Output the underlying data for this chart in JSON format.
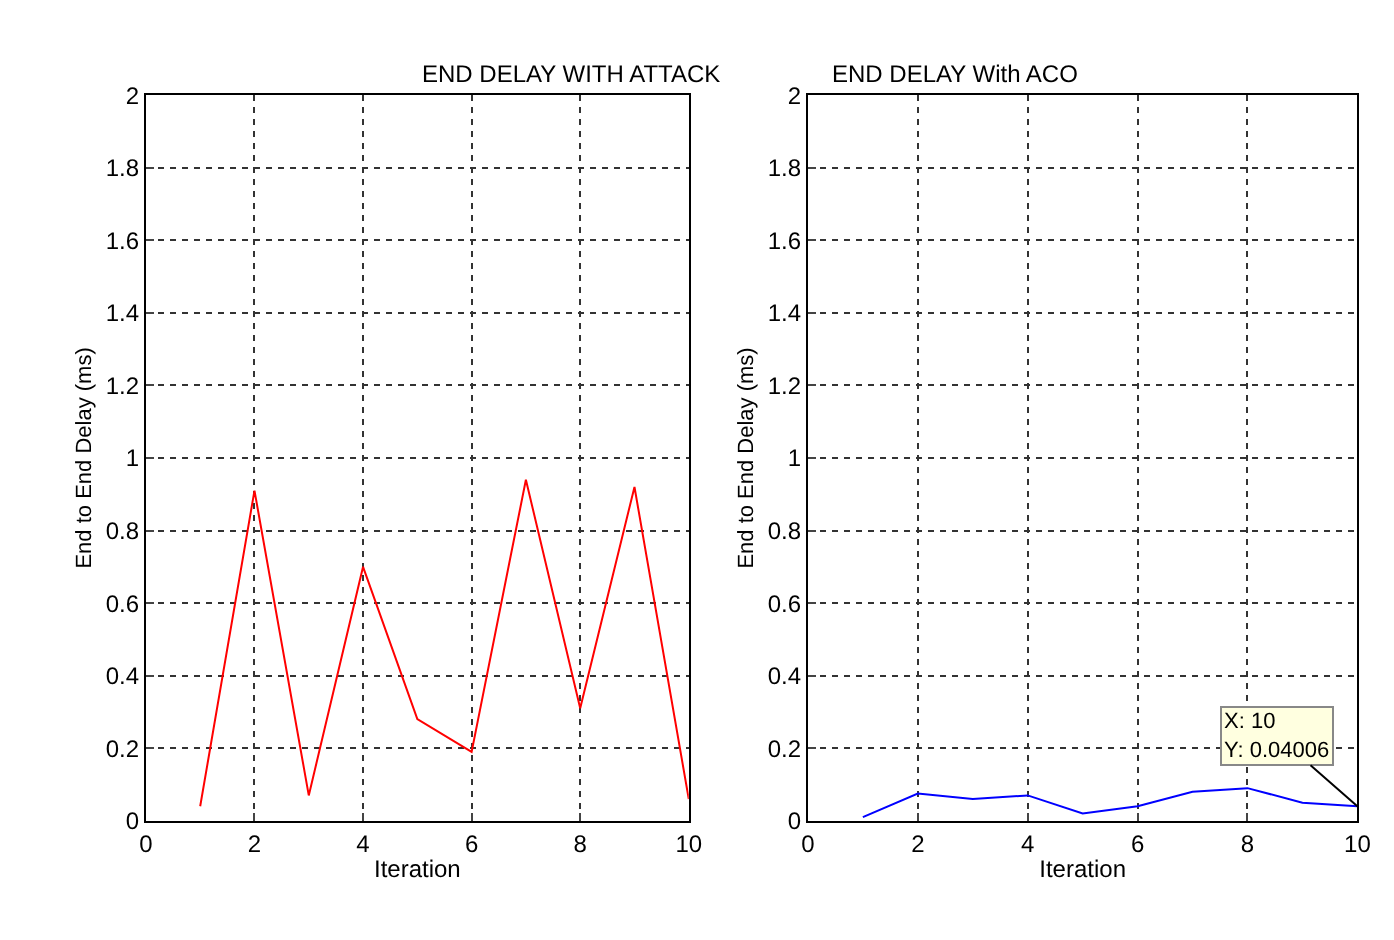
{
  "chart_data": [
    {
      "type": "line",
      "title": "END DELAY WITH ATTACK",
      "xlabel": "Iteration",
      "ylabel": "End to End Delay (ms)",
      "x": [
        1,
        2,
        3,
        4,
        5,
        6,
        7,
        8,
        9,
        10
      ],
      "series": [
        {
          "color": "#ff0000",
          "values": [
            0.04,
            0.91,
            0.07,
            0.7,
            0.28,
            0.19,
            0.94,
            0.31,
            0.92,
            0.06
          ]
        }
      ],
      "xlim": [
        0,
        10
      ],
      "xticks": [
        0,
        2,
        4,
        6,
        8,
        10
      ],
      "ylim": [
        0,
        2
      ],
      "yticks": [
        0,
        0.2,
        0.4,
        0.6,
        0.8,
        1,
        1.2,
        1.4,
        1.6,
        1.8,
        2
      ],
      "grid": true,
      "line_style": "solid",
      "marker": "none"
    },
    {
      "type": "line",
      "title": "END DELAY With ACO",
      "xlabel": "Iteration",
      "ylabel": "End to End Delay (ms)",
      "x": [
        1,
        2,
        3,
        4,
        5,
        6,
        7,
        8,
        9,
        10
      ],
      "series": [
        {
          "color": "#0000ff",
          "values": [
            0.01,
            0.075,
            0.06,
            0.07,
            0.02,
            0.04,
            0.08,
            0.09,
            0.05,
            0.04006
          ]
        }
      ],
      "xlim": [
        0,
        10
      ],
      "xticks": [
        0,
        2,
        4,
        6,
        8,
        10
      ],
      "ylim": [
        0,
        2
      ],
      "yticks": [
        0,
        0.2,
        0.4,
        0.6,
        0.8,
        1,
        1.2,
        1.4,
        1.6,
        1.8,
        2
      ],
      "grid": true,
      "line_style": "solid",
      "marker": "none",
      "annotations": [
        {
          "text": "X: 10\nY: 0.04006",
          "x": 10,
          "y": 0.04006
        }
      ]
    }
  ]
}
